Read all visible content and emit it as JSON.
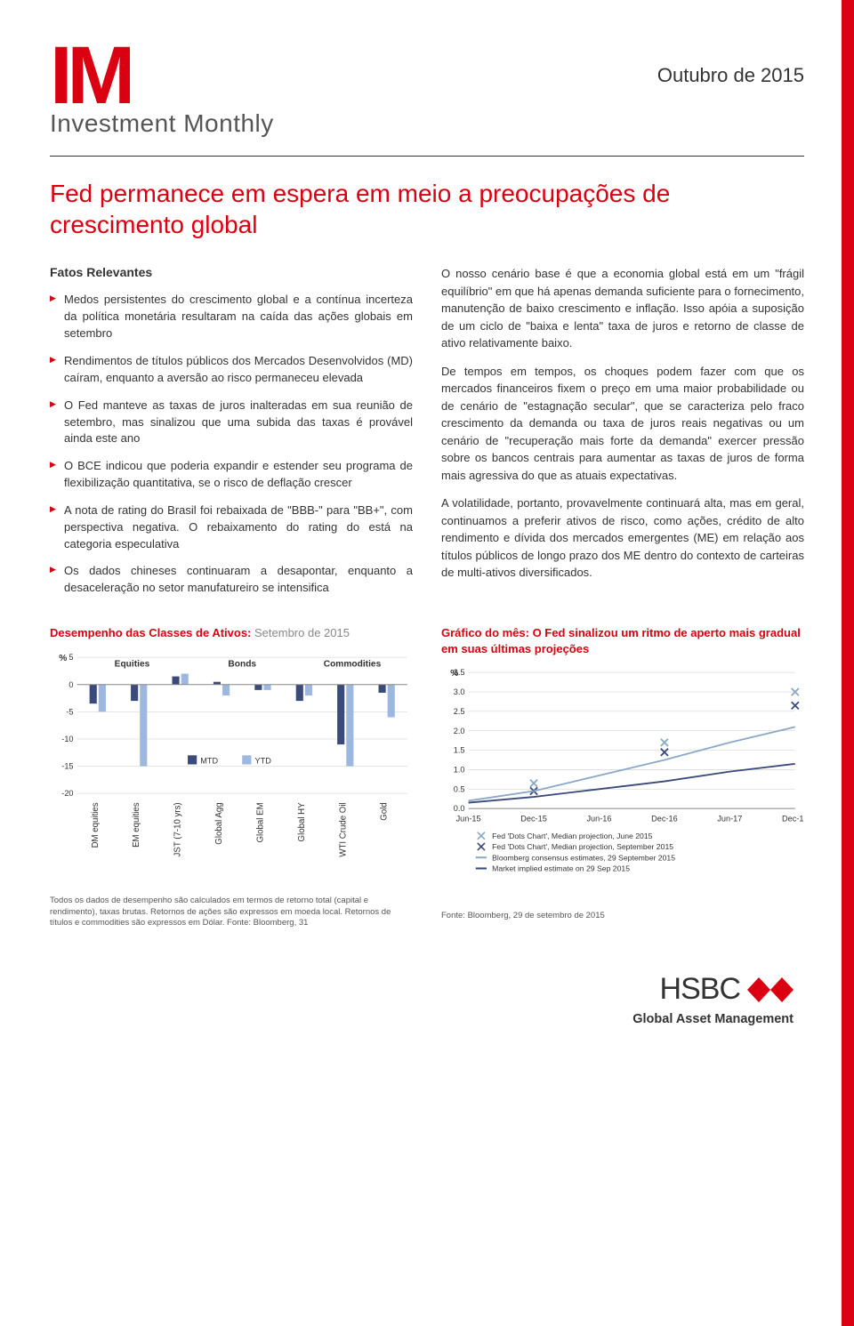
{
  "header": {
    "logo_im": "IM",
    "logo_sub": "Investment Monthly",
    "date": "Outubro de 2015"
  },
  "main_title": "Fed permanece em espera em meio a preocupações de crescimento global",
  "fatos_label": "Fatos Relevantes",
  "bullets": [
    "Medos persistentes do crescimento global e a contínua incerteza da política monetária resultaram na caída das ações globais em setembro",
    "Rendimentos de títulos públicos dos Mercados Desenvolvidos (MD) caíram, enquanto a aversão ao risco permaneceu elevada",
    "O Fed manteve as taxas de juros inalteradas em sua reunião de setembro, mas sinalizou que uma subida das taxas é provável ainda este ano",
    "O BCE indicou que poderia expandir e estender seu programa de flexibilização quantitativa, se o risco de deflação crescer",
    "A nota de rating do Brasil foi rebaixada de \"BBB-\" para \"BB+\", com perspectiva negativa. O rebaixamento do rating do está na categoria especulativa",
    "Os dados chineses continuaram a desapontar, enquanto a desaceleração no setor manufatureiro se intensifica"
  ],
  "paragraphs": [
    "O nosso cenário base é que a economia global está em um \"frágil equilíbrio\" em que há apenas demanda suficiente para o fornecimento, manutenção de baixo crescimento e inflação. Isso apóia a suposição de um ciclo de \"baixa e lenta\" taxa de juros e retorno de classe de ativo relativamente baixo.",
    "De tempos em tempos, os choques podem fazer com que os mercados financeiros fixem o preço em uma maior probabilidade ou de cenário de \"estagnação secular\", que se caracteriza pelo fraco crescimento da demanda ou taxa de juros reais negativas ou um cenário de \"recuperação mais forte da demanda\" exercer pressão sobre os bancos centrais para aumentar as taxas de juros de forma mais agressiva do que as atuais expectativas.",
    "A volatilidade, portanto, provavelmente continuará alta, mas em geral, continuamos a preferir ativos de risco, como ações, crédito de alto rendimento e dívida dos mercados emergentes (ME) em relação aos títulos públicos de longo prazo dos ME dentro do contexto de carteiras de multi-ativos diversificados."
  ],
  "chart_left": {
    "title_red": "Desempenho das Classes de Ativos:",
    "title_grey": " Setembro de 2015",
    "type": "bar",
    "y_label": "%",
    "ylim": [
      -20,
      5
    ],
    "ytick_step": 5,
    "group_labels": [
      "Equities",
      "Bonds",
      "Commodities"
    ],
    "categories": [
      "DM equities",
      "EM equities",
      "JST (7-10 yrs)",
      "Global Agg",
      "Global EM",
      "Global HY",
      "WTI Crude Oil",
      "Gold"
    ],
    "series": [
      {
        "name": "MTD",
        "color": "#3a4a7a",
        "values": [
          -3.5,
          -3,
          1.5,
          0.5,
          -1,
          -3,
          -11,
          -1.5
        ]
      },
      {
        "name": "YTD",
        "color": "#9db8e0",
        "values": [
          -5,
          -15,
          2,
          -2,
          -1,
          -2,
          -15,
          -6
        ]
      }
    ],
    "legend_labels": {
      "mtd": "MTD",
      "ytd": "YTD"
    },
    "grid_color": "#cccccc",
    "background": "#ffffff",
    "bar_width": 0.35,
    "note": "Todos os dados de desempenho são calculados em termos de retorno total (capital e rendimento), taxas brutas. Retornos de ações são expressos em moeda local. Retornos de títulos e commodities são expressos em Dólar. Fonte: Bloomberg, 31"
  },
  "chart_right": {
    "title_red": "Gráfico do mês: O Fed sinalizou um ritmo de aperto mais gradual em suas últimas projeções",
    "type": "line-scatter",
    "y_label": "%",
    "ylim": [
      0,
      3.5
    ],
    "ytick_step": 0.5,
    "x_categories": [
      "Jun-15",
      "Dec-15",
      "Jun-16",
      "Dec-16",
      "Jun-17",
      "Dec-17"
    ],
    "series": [
      {
        "name": "Fed 'Dots Chart', Median projection, June 2015",
        "marker": "x",
        "color": "#8aa8c8",
        "points": [
          [
            2,
            0.65
          ],
          [
            4,
            1.7
          ],
          [
            6,
            3.0
          ]
        ],
        "line": false
      },
      {
        "name": "Fed 'Dots Chart', Median projection, September 2015",
        "marker": "x",
        "color": "#3a4a7a",
        "points": [
          [
            2,
            0.45
          ],
          [
            4,
            1.45
          ],
          [
            6,
            2.65
          ]
        ],
        "line": false
      },
      {
        "name": "Bloomberg consensus estimates, 29 September 2015",
        "color": "#8aa8c8",
        "points": [
          [
            1,
            0.2
          ],
          [
            2,
            0.45
          ],
          [
            3,
            0.85
          ],
          [
            4,
            1.25
          ],
          [
            5,
            1.7
          ],
          [
            6,
            2.1
          ]
        ],
        "line": true
      },
      {
        "name": "Market implied estimate on 29 Sep 2015",
        "color": "#3a4a7a",
        "points": [
          [
            1,
            0.15
          ],
          [
            2,
            0.3
          ],
          [
            3,
            0.5
          ],
          [
            4,
            0.7
          ],
          [
            5,
            0.95
          ],
          [
            6,
            1.15
          ]
        ],
        "line": true
      }
    ],
    "grid_color": "#cccccc",
    "background": "#ffffff",
    "source": "Fonte: Bloomberg, 29 de setembro de 2015"
  },
  "footer": {
    "brand": "HSBC",
    "sub": "Global Asset Management"
  },
  "colors": {
    "accent": "#db0011",
    "mtd": "#3a4a7a",
    "ytd": "#9db8e0",
    "grid": "#cccccc"
  }
}
